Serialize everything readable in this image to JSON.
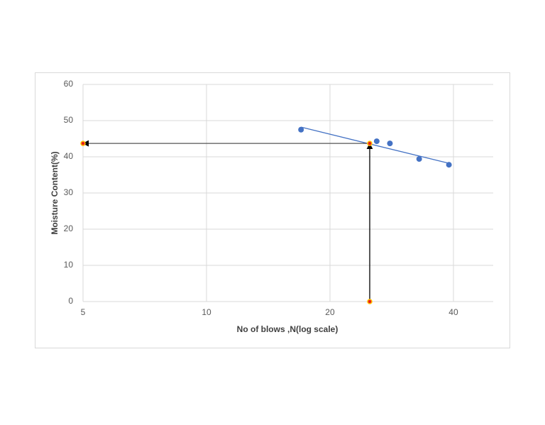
{
  "chart_data": {
    "type": "scatter",
    "x_label": "No of blows ,N(log scale)",
    "y_label": "Moisture Content(%)",
    "xlim": [
      5,
      50
    ],
    "xticks": [
      5,
      10,
      20,
      40
    ],
    "xscale": "log",
    "ylim": [
      0,
      60
    ],
    "yticks": [
      0,
      10,
      20,
      30,
      40,
      50,
      60
    ],
    "grid": true,
    "series": [
      {
        "mode": "markers",
        "color": "#4472c4",
        "x": [
          17,
          26,
          28,
          33,
          39
        ],
        "values": [
          47.5,
          44.3,
          43.7,
          39.4,
          37.8
        ]
      },
      {
        "mode": "line",
        "color": "#4472c4",
        "x": [
          17,
          39
        ],
        "values": [
          48.2,
          38.2
        ]
      },
      {
        "mode": "arrow",
        "color": "#000000",
        "x": [
          25,
          25
        ],
        "values": [
          0,
          43.7
        ]
      },
      {
        "mode": "arrow",
        "color": "#555555",
        "x": [
          25,
          5
        ],
        "values": [
          43.7,
          43.7
        ]
      },
      {
        "mode": "markers",
        "color": "#e8201c",
        "edge": "#ffc000",
        "x": [
          25,
          25,
          5
        ],
        "values": [
          0,
          43.7,
          43.7
        ]
      }
    ]
  }
}
